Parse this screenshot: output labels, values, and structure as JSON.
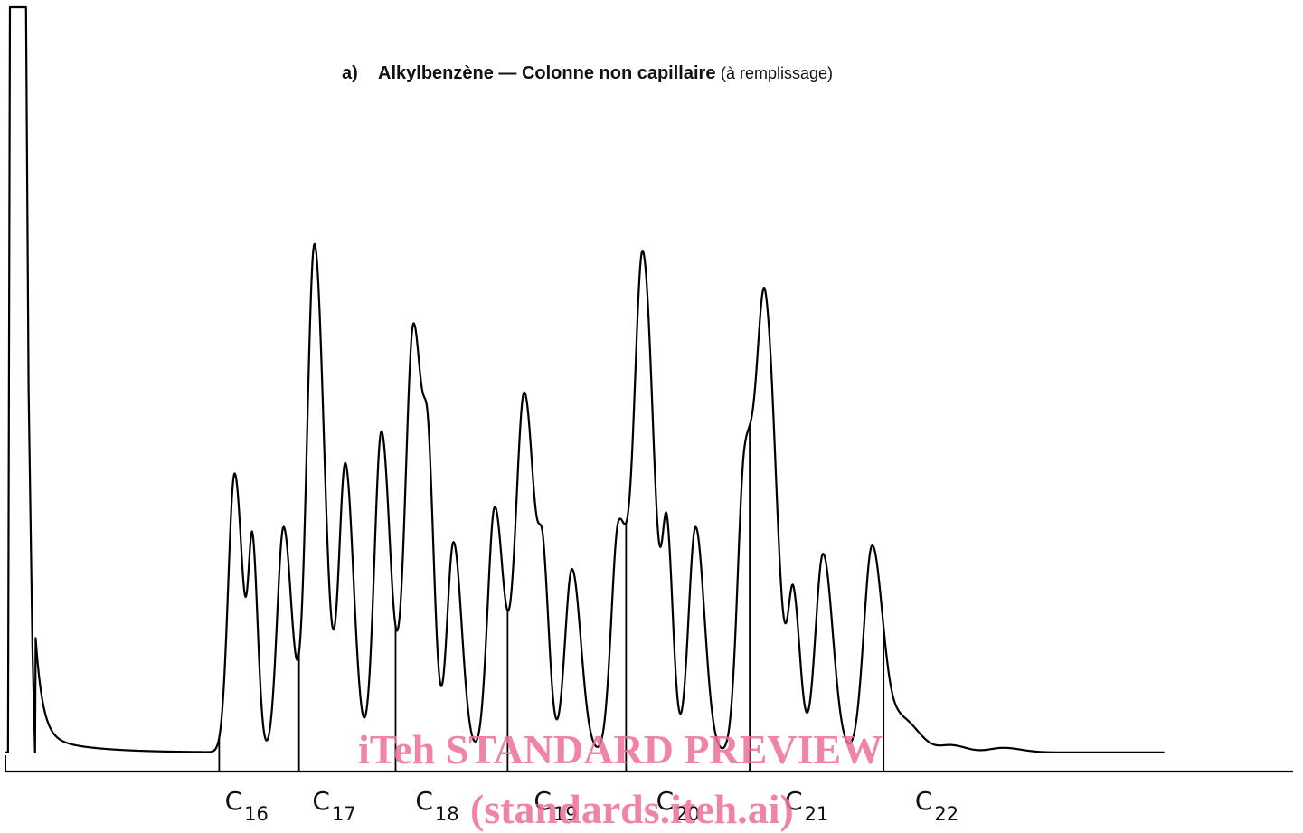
{
  "title": {
    "prefix": "a)",
    "bold_text": "Alkylbenzène — Colonne non capillaire",
    "normal_text": "(à remplissage)"
  },
  "watermark": {
    "line1": "iTeh STANDARD PREVIEW",
    "line2": "(standards.iteh.ai)",
    "color": "#ec6e96"
  },
  "chart_data": {
    "type": "line",
    "title": "a) Alkylbenzène — Colonne non capillaire (à remplissage)",
    "xlabel": "",
    "ylabel": "",
    "grid": false,
    "legend": "none",
    "series_color": "#000000",
    "xlim": [
      0,
      100
    ],
    "ylim": [
      0,
      100
    ],
    "baseline": 2.5,
    "solvent_peak": {
      "x": 1.4,
      "height": 100
    },
    "peaks": [
      {
        "x": 17.8,
        "height": 36.5,
        "width": 0.55
      },
      {
        "x": 19.2,
        "height": 25.5,
        "width": 0.35
      },
      {
        "x": 21.6,
        "height": 29.5,
        "width": 0.55
      },
      {
        "x": 24.0,
        "height": 66.5,
        "width": 0.65
      },
      {
        "x": 26.4,
        "height": 37.5,
        "width": 0.55
      },
      {
        "x": 29.2,
        "height": 42.0,
        "width": 0.6
      },
      {
        "x": 31.7,
        "height": 56.0,
        "width": 0.7
      },
      {
        "x": 32.9,
        "height": 23.0,
        "width": 0.4
      },
      {
        "x": 34.8,
        "height": 27.5,
        "width": 0.55
      },
      {
        "x": 38.0,
        "height": 32.0,
        "width": 0.6
      },
      {
        "x": 40.3,
        "height": 47.0,
        "width": 0.75
      },
      {
        "x": 41.8,
        "height": 17.0,
        "width": 0.4
      },
      {
        "x": 44.0,
        "height": 24.0,
        "width": 0.6
      },
      {
        "x": 47.6,
        "height": 29.0,
        "width": 0.6
      },
      {
        "x": 49.5,
        "height": 65.0,
        "width": 0.75
      },
      {
        "x": 51.4,
        "height": 25.0,
        "width": 0.4
      },
      {
        "x": 53.6,
        "height": 29.5,
        "width": 0.6
      },
      {
        "x": 57.4,
        "height": 36.5,
        "width": 0.6
      },
      {
        "x": 59.0,
        "height": 58.0,
        "width": 0.75
      },
      {
        "x": 61.2,
        "height": 19.5,
        "width": 0.45
      },
      {
        "x": 63.5,
        "height": 26.0,
        "width": 0.65
      },
      {
        "x": 67.3,
        "height": 26.5,
        "width": 0.7
      },
      {
        "x": 69.5,
        "height": 4.5,
        "width": 1.2
      },
      {
        "x": 73.5,
        "height": 0.9,
        "width": 1.0
      },
      {
        "x": 77.5,
        "height": 0.6,
        "width": 1.2
      }
    ],
    "x_end": 90.0,
    "cut_markers_x": [
      16.6,
      22.8,
      30.3,
      39.0,
      48.2,
      57.8,
      68.2
    ],
    "carbon_labels": [
      {
        "label": "C",
        "sub": "16",
        "x": 18.3
      },
      {
        "label": "C",
        "sub": "17",
        "x": 25.1
      },
      {
        "label": "C",
        "sub": "18",
        "x": 33.1
      },
      {
        "label": "C",
        "sub": "19",
        "x": 42.3
      },
      {
        "label": "C",
        "sub": "20",
        "x": 51.8
      },
      {
        "label": "C",
        "sub": "21",
        "x": 61.8
      },
      {
        "label": "C",
        "sub": "22",
        "x": 71.9
      }
    ]
  }
}
